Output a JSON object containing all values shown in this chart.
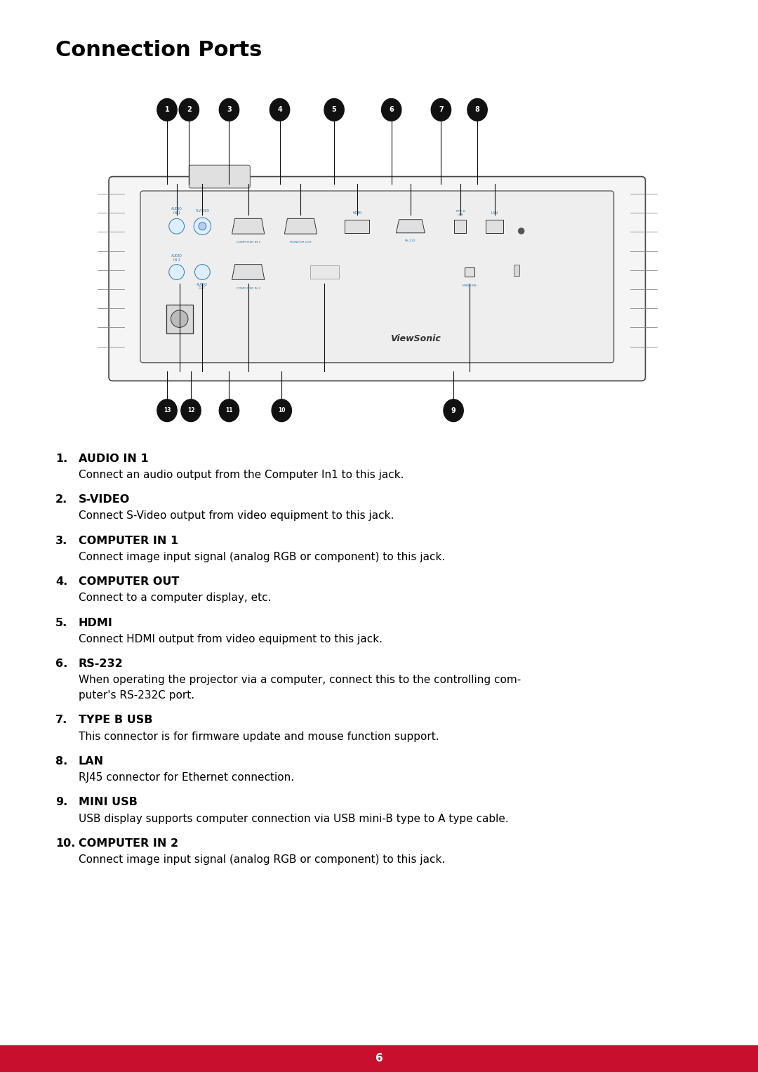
{
  "title": "Connection Ports",
  "title_fontsize": 22,
  "page_number": "6",
  "background_color": "#ffffff",
  "footer_color": "#c8102e",
  "items": [
    {
      "num": "1.",
      "label": "AUDIO IN 1",
      "desc": "Connect an audio output from the Computer In1 to this jack."
    },
    {
      "num": "2.",
      "label": "S-VIDEO",
      "desc": "Connect S-Video output from video equipment to this jack."
    },
    {
      "num": "3.",
      "label": "COMPUTER IN 1",
      "desc": "Connect image input signal (analog RGB or component) to this jack."
    },
    {
      "num": "4.",
      "label": "COMPUTER OUT",
      "desc": "Connect to a computer display, etc."
    },
    {
      "num": "5.",
      "label": "HDMI",
      "desc": "Connect HDMI output from video equipment to this jack."
    },
    {
      "num": "6.",
      "label": "RS-232",
      "desc": "When operating the projector via a computer, connect this to the controlling com-\nputer's RS-232C port."
    },
    {
      "num": "7.",
      "label": "TYPE B USB",
      "desc": "This connector is for firmware update and mouse function support."
    },
    {
      "num": "8.",
      "label": "LAN",
      "desc": "RJ45 connector for Ethernet connection."
    },
    {
      "num": "9.",
      "label": "MINI USB",
      "desc": "USB display supports computer connection via USB mini-B type to A type cable."
    },
    {
      "num": "10.",
      "label": "COMPUTER IN 2",
      "desc": "Connect image input signal (analog RGB or component) to this jack."
    }
  ],
  "top_bubble_labels": [
    "1",
    "2",
    "3",
    "4",
    "5",
    "6",
    "7",
    "8"
  ],
  "bottom_bubble_labels": [
    "13",
    "12",
    "11",
    "10",
    "9"
  ],
  "bubble_color": "#111111",
  "bubble_text_color": "#ffffff"
}
